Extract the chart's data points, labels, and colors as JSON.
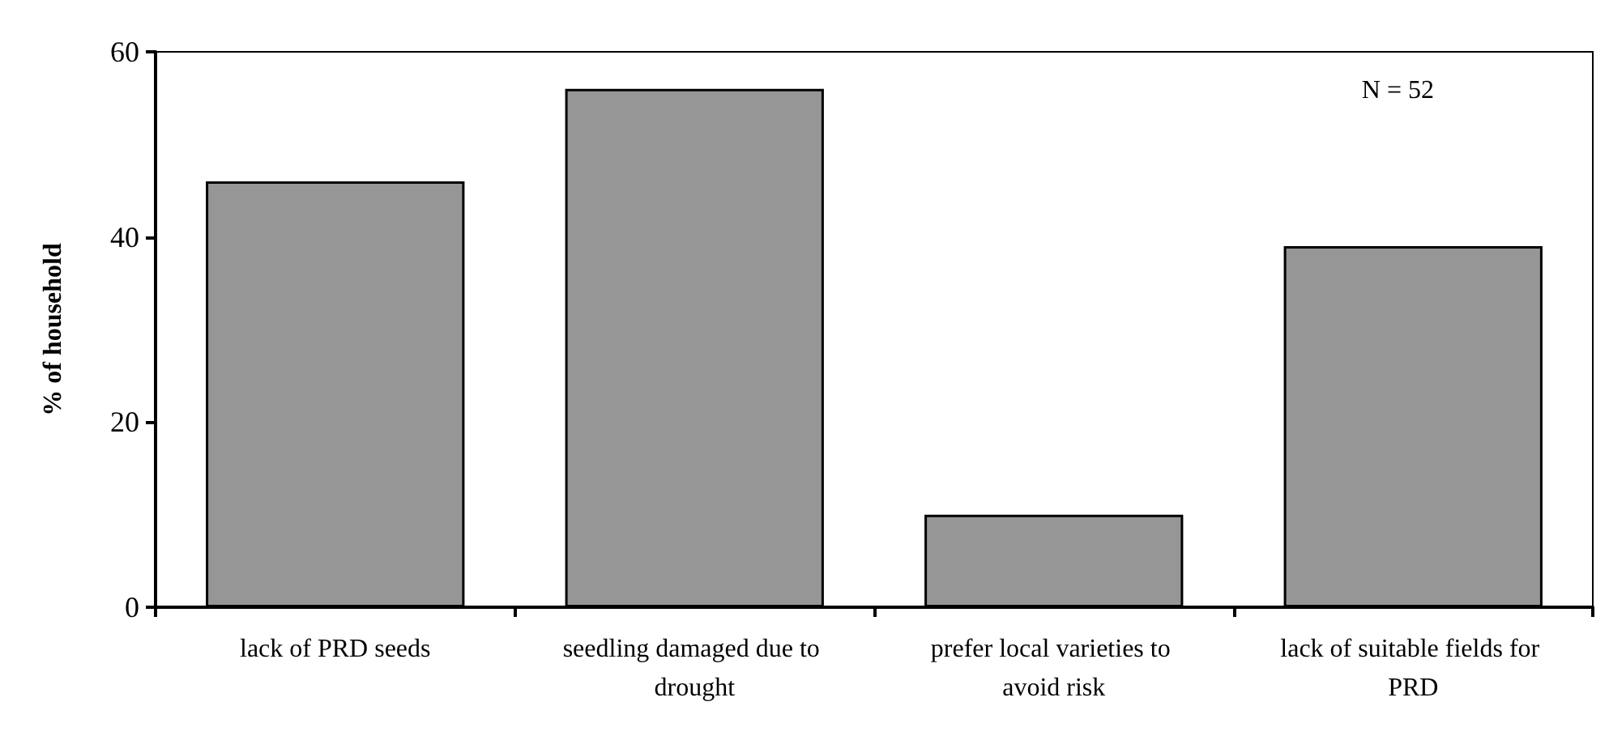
{
  "chart_data": {
    "type": "bar",
    "categories": [
      "lack of PRD seeds",
      "seedling damaged due to drought",
      "prefer local varieties to avoid risk",
      "lack of suitable fields for PRD"
    ],
    "values": [
      46,
      56,
      10,
      39
    ],
    "color": "#969696",
    "ylabel": "% of household",
    "ylim": [
      0,
      60
    ],
    "yticks": [
      0,
      20,
      40,
      60
    ],
    "grid": false,
    "annotations": [
      "N = 52"
    ]
  }
}
